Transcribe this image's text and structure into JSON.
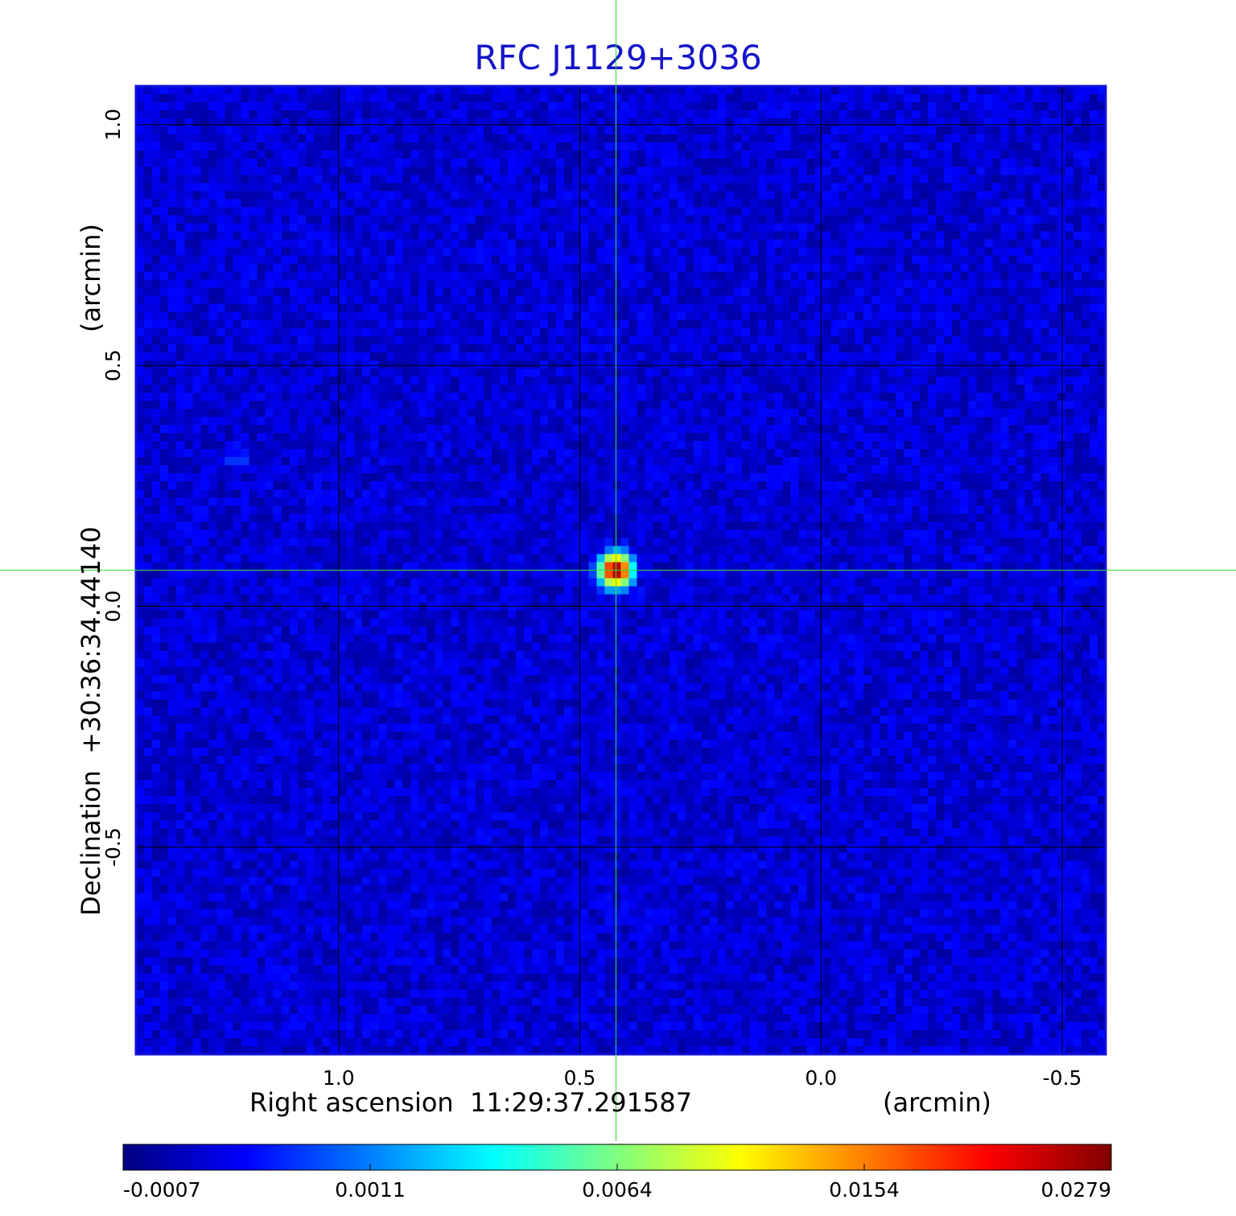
{
  "chart_data": {
    "type": "heatmap",
    "title": "RFC J1129+3036",
    "xlabel": "Right ascension  11:29:37.291587",
    "xlabel_unit": "(arcmin)",
    "ylabel": "Declination  +30:36:34.44140",
    "ylabel_unit": "(arcmin)",
    "x_ticks": [
      1.0,
      0.5,
      0.0,
      -0.5
    ],
    "x_tick_labels": [
      "1.0",
      "0.5",
      "0.0",
      "-0.5"
    ],
    "y_ticks": [
      1.0,
      0.5,
      0.0,
      -0.5
    ],
    "y_tick_labels": [
      "1.0",
      "0.5",
      "0.0",
      "-0.5"
    ],
    "xlim": [
      1.42,
      -0.59
    ],
    "ylim": [
      -0.93,
      1.08
    ],
    "x_reversed": true,
    "grid": true,
    "crosshair": {
      "x": 0.425,
      "y": 0.075,
      "color": "#33dd33"
    },
    "source": {
      "x": 0.425,
      "y": 0.075,
      "peak": 0.0279
    },
    "secondary_feature": {
      "x": 1.21,
      "y": 0.31
    },
    "colormap": "jet",
    "colorbar": {
      "ticks": [
        -0.0007,
        0.0011,
        0.0064,
        0.0154,
        0.0279
      ],
      "tick_labels": [
        "-0.0007",
        "0.0011",
        "0.0064",
        "0.0154",
        "0.0279"
      ],
      "placement": "bottom"
    },
    "background_level": -0.0001
  }
}
